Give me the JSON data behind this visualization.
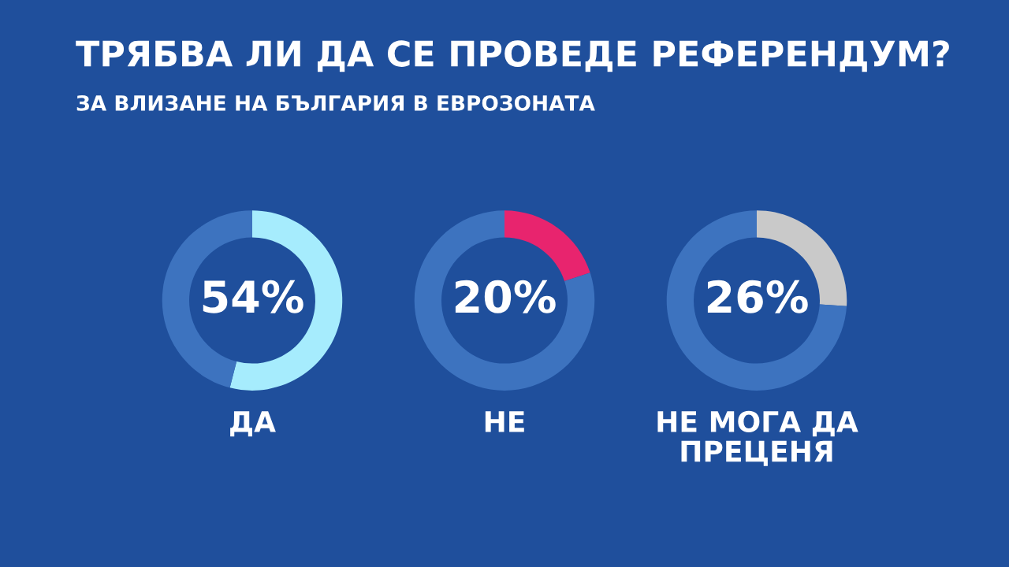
{
  "chart_data": [
    {
      "type": "donut",
      "title": "ТРЯБВА ЛИ ДА СЕ ПРОВЕДЕ РЕФЕРЕНДУМ?",
      "subtitle": "ЗА ВЛИЗАНЕ НА БЪЛГАРИЯ В ЕВРОЗОНАТА",
      "xlabel": "ДА",
      "categories": [
        null,
        null
      ],
      "values": [
        54,
        46
      ],
      "colors": [
        "#a6ecfd",
        "#3d73bf"
      ],
      "value_labels": [
        "54%",
        null
      ]
    },
    {
      "type": "donut",
      "xlabel": "НЕ",
      "categories": [
        null,
        null
      ],
      "values": [
        20,
        80
      ],
      "colors": [
        "#e8246e",
        "#3d73bf"
      ],
      "value_labels": [
        "20%",
        null
      ]
    },
    {
      "type": "donut",
      "xlabel": "НЕ МОГА ДА ПРЕЦЕНЯ",
      "categories": [
        null,
        null
      ],
      "values": [
        26,
        74
      ],
      "colors": [
        "#c9c9c9",
        "#3d73bf"
      ],
      "value_labels": [
        "26%",
        null
      ]
    }
  ]
}
